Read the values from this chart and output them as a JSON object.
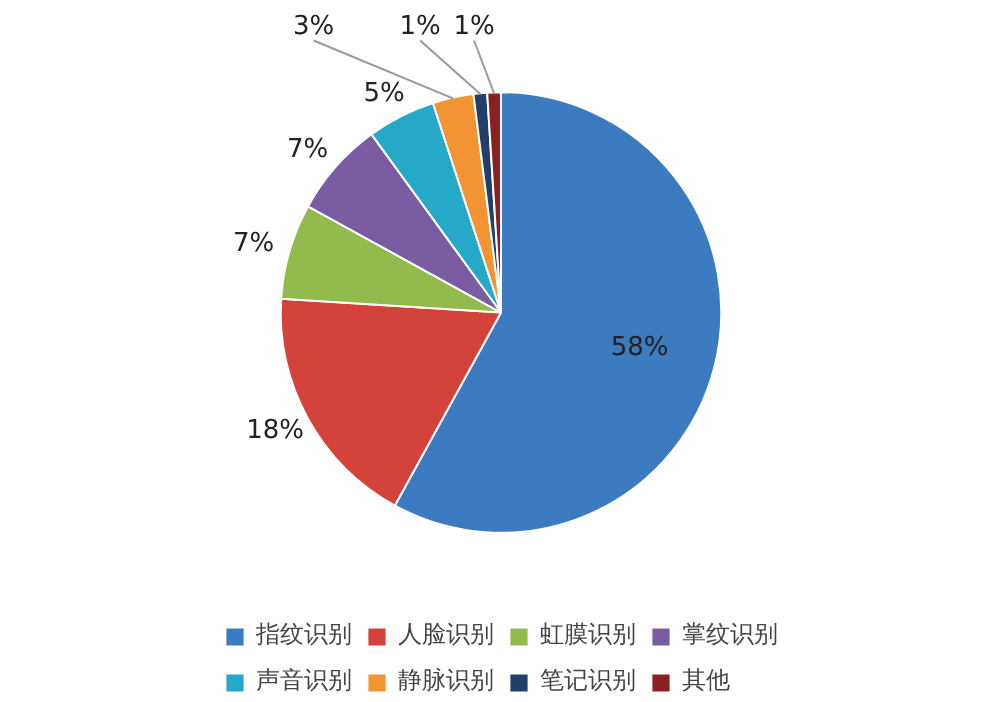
{
  "chart_data": {
    "type": "pie",
    "categories": [
      "指纹识别",
      "人脸识别",
      "虹膜识别",
      "掌纹识别",
      "声音识别",
      "静脉识别",
      "笔记识别",
      "其他"
    ],
    "values": [
      58,
      18,
      7,
      7,
      5,
      3,
      1,
      1
    ],
    "colors": [
      "#3c7bbf",
      "#d4423c",
      "#93ba4c",
      "#7a5ca3",
      "#26a9c9",
      "#f29433",
      "#203f6b",
      "#8c2020"
    ],
    "value_labels": [
      "58%",
      "18%",
      "7%",
      "7%",
      "5%",
      "3%",
      "1%",
      "1%"
    ],
    "legend": "bottom"
  }
}
